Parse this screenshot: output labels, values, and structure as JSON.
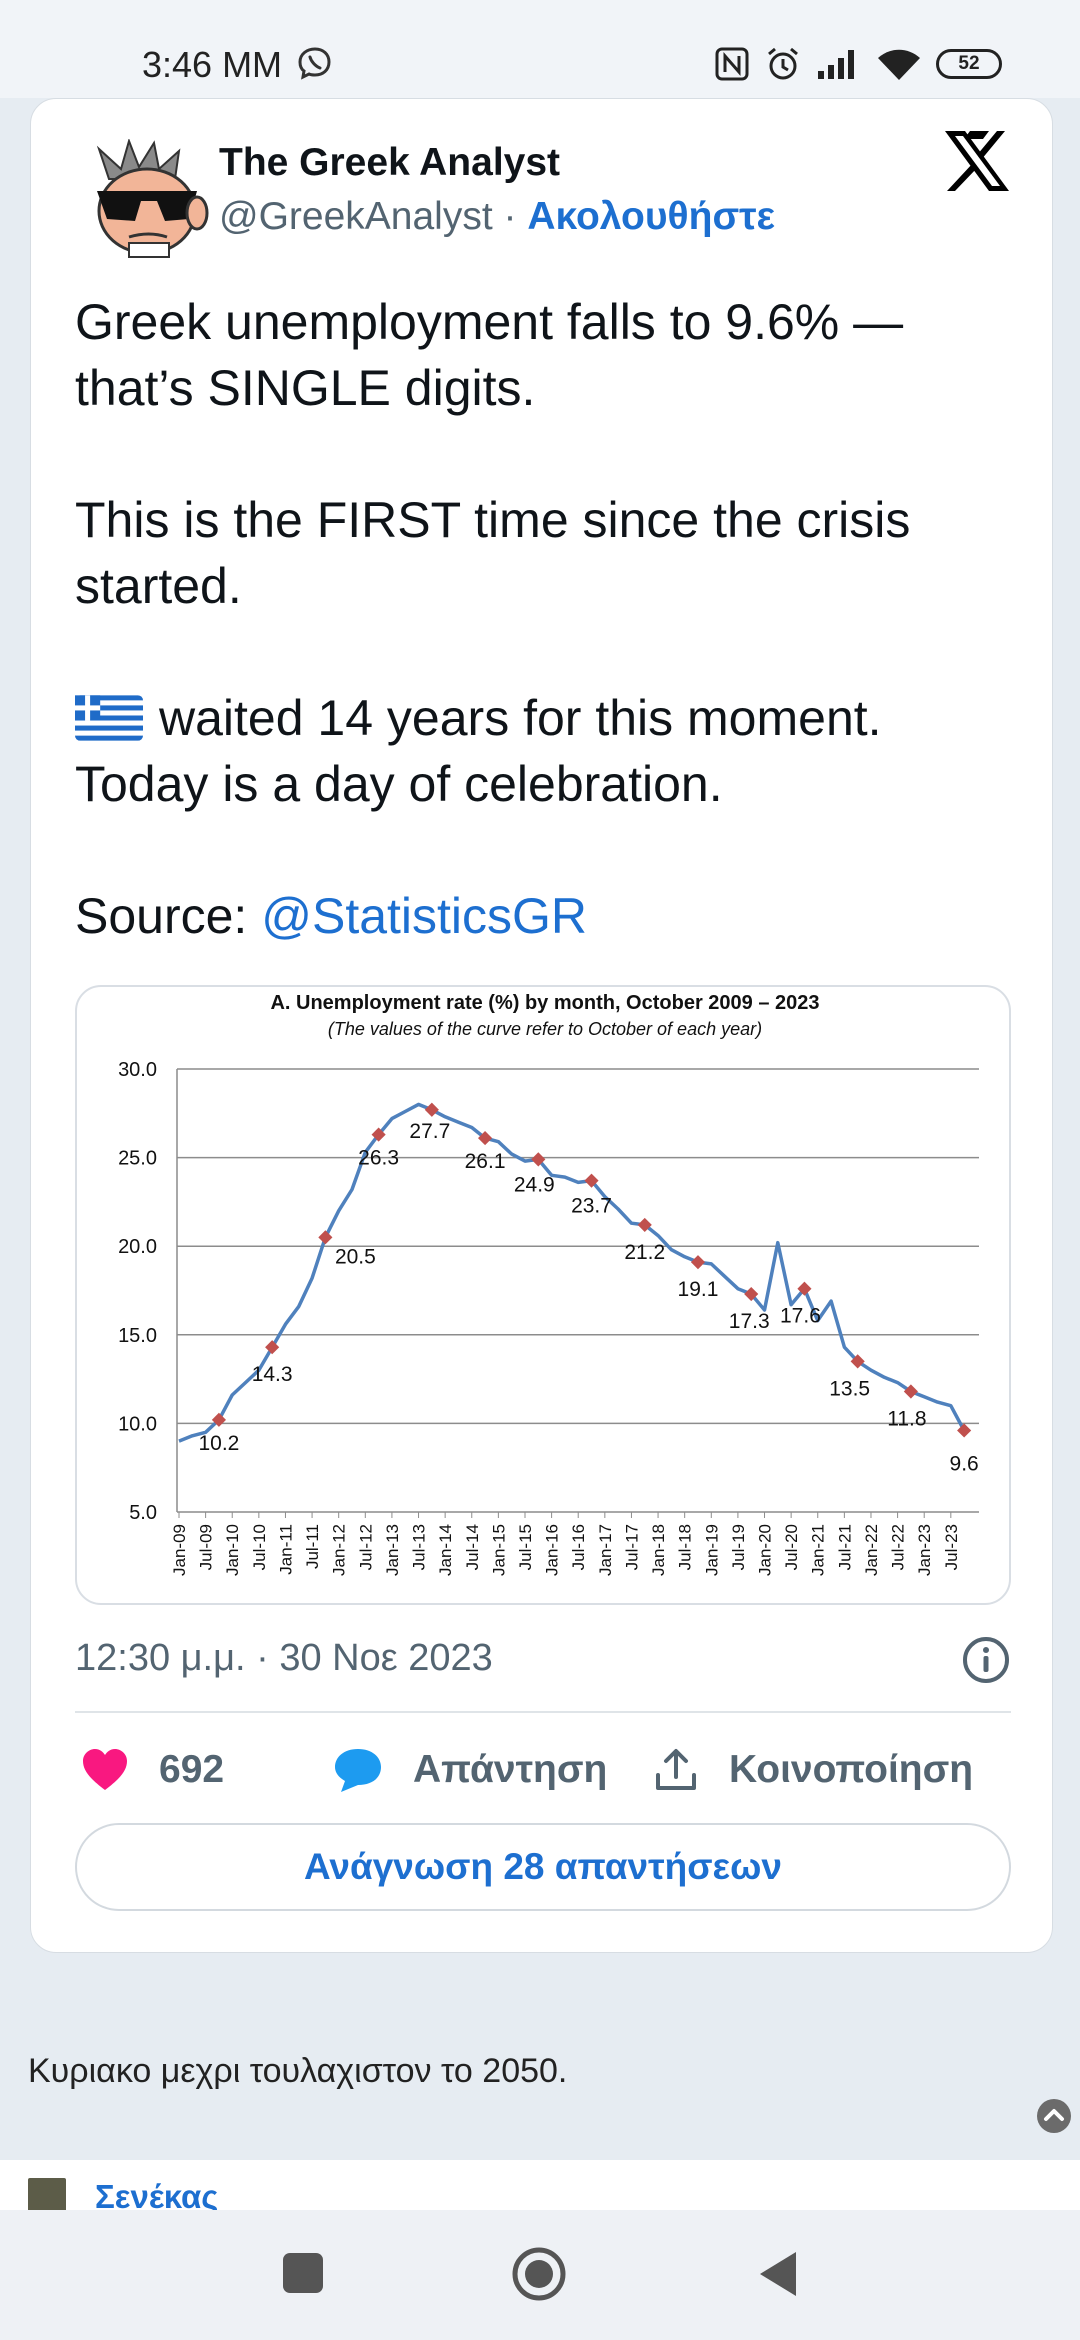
{
  "status_bar": {
    "time": "3:46 MM",
    "battery": "52"
  },
  "tweet": {
    "author_name": "The Greek Analyst",
    "author_handle": "@GreekAnalyst",
    "separator": " · ",
    "follow_label": "Ακολουθήστε",
    "text_line1": "Greek unemployment falls to 9.6% — that’s SINGLE digits.",
    "text_line2": "This is the FIRST time since the crisis started.",
    "text_line3": "waited 14 years for this moment. Today is a day of celebration.",
    "source_label": "Source: ",
    "source_mention": "@StatisticsGR",
    "timestamp": "12:30 μ.μ. · 30 Νοε 2023",
    "likes": "692",
    "reply_label": "Απάντηση",
    "share_label": "Κοινοποίηση",
    "read_replies": "Ανάγνωση 28 απαντήσεων"
  },
  "comment": {
    "text": "Κυριακο μεχρι τουλαχιστον το 2050."
  },
  "next_reply": {
    "author": "Σενέκας"
  },
  "colors": {
    "accent": "#1d6fd0",
    "like": "#f91880",
    "line": "#4f81bd",
    "marker": "#c0504d"
  },
  "chart_data": {
    "type": "line",
    "title": "A. Unemployment rate (%) by month, October  2009 – 2023",
    "subtitle": "(The values of the curve refer to October of each year)",
    "ylim": [
      5,
      30
    ],
    "yticks": [
      "30.0",
      "25.0",
      "20.0",
      "15.0",
      "10.0",
      "5.0"
    ],
    "xticks": [
      "Jan-09",
      "Jul-09",
      "Jan-10",
      "Jul-10",
      "Jan-11",
      "Jul-11",
      "Jan-12",
      "Jul-12",
      "Jan-13",
      "Jul-13",
      "Jan-14",
      "Jul-14",
      "Jan-15",
      "Jul-15",
      "Jan-16",
      "Jul-16",
      "Jan-17",
      "Jul-17",
      "Jan-18",
      "Jul-18",
      "Jan-19",
      "Jul-19",
      "Jan-20",
      "Jul-20",
      "Jan-21",
      "Jul-21",
      "Jan-22",
      "Jul-22",
      "Jan-23",
      "Jul-23"
    ],
    "series": [
      {
        "name": "",
        "x": [
          "Jan-09",
          "Apr-09",
          "Jul-09",
          "Oct-09",
          "Jan-10",
          "Apr-10",
          "Jul-10",
          "Oct-10",
          "Jan-11",
          "Apr-11",
          "Jul-11",
          "Oct-11",
          "Jan-12",
          "Apr-12",
          "Jul-12",
          "Oct-12",
          "Jan-13",
          "Apr-13",
          "Jul-13",
          "Oct-13",
          "Jan-14",
          "Apr-14",
          "Jul-14",
          "Oct-14",
          "Jan-15",
          "Apr-15",
          "Jul-15",
          "Oct-15",
          "Jan-16",
          "Apr-16",
          "Jul-16",
          "Oct-16",
          "Jan-17",
          "Apr-17",
          "Jul-17",
          "Oct-17",
          "Jan-18",
          "Apr-18",
          "Jul-18",
          "Oct-18",
          "Jan-19",
          "Apr-19",
          "Jul-19",
          "Oct-19",
          "Jan-20",
          "Apr-20",
          "Jul-20",
          "Oct-20",
          "Jan-21",
          "Apr-21",
          "Jul-21",
          "Oct-21",
          "Jan-22",
          "Apr-22",
          "Jul-22",
          "Oct-22",
          "Jan-23",
          "Apr-23",
          "Jul-23",
          "Oct-23"
        ],
        "values": [
          9.0,
          9.3,
          9.5,
          10.2,
          11.6,
          12.3,
          13.0,
          14.3,
          15.6,
          16.6,
          18.2,
          20.5,
          22.0,
          23.2,
          25.3,
          26.3,
          27.2,
          27.6,
          28.0,
          27.7,
          27.3,
          27.0,
          26.7,
          26.1,
          25.9,
          25.2,
          24.8,
          24.9,
          24.0,
          23.9,
          23.6,
          23.7,
          22.8,
          22.1,
          21.3,
          21.2,
          20.6,
          19.8,
          19.4,
          19.1,
          19.0,
          18.3,
          17.6,
          17.3,
          16.4,
          20.2,
          16.7,
          17.6,
          15.8,
          16.9,
          14.3,
          13.5,
          13.0,
          12.6,
          12.3,
          11.8,
          11.5,
          11.2,
          11.0,
          9.6
        ]
      }
    ],
    "labeled_points": [
      {
        "x": "Oct-09",
        "value": 10.2
      },
      {
        "x": "Oct-10",
        "value": 14.3
      },
      {
        "x": "Oct-11",
        "value": 20.5
      },
      {
        "x": "Oct-12",
        "value": 26.3
      },
      {
        "x": "Oct-13",
        "value": 27.7
      },
      {
        "x": "Oct-14",
        "value": 26.1
      },
      {
        "x": "Oct-15",
        "value": 24.9
      },
      {
        "x": "Oct-16",
        "value": 23.7
      },
      {
        "x": "Oct-17",
        "value": 21.2
      },
      {
        "x": "Oct-18",
        "value": 19.1
      },
      {
        "x": "Oct-19",
        "value": 17.3
      },
      {
        "x": "Oct-20",
        "value": 17.6
      },
      {
        "x": "Oct-21",
        "value": 13.5
      },
      {
        "x": "Oct-22",
        "value": 11.8
      },
      {
        "x": "Oct-23",
        "value": 9.6
      }
    ],
    "grid": true
  }
}
